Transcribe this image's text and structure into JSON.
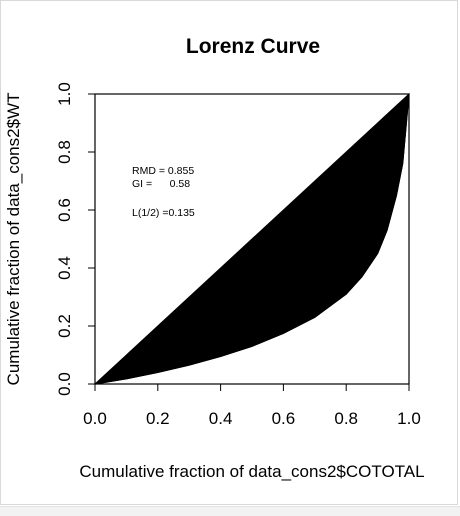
{
  "chart_data": {
    "type": "area",
    "title": "Lorenz Curve",
    "xlabel": "Cumulative fraction of data_cons2$COTOTAL",
    "ylabel": "Cumulative fraction of data_cons2$WT",
    "xlim": [
      0,
      1
    ],
    "ylim": [
      0,
      1
    ],
    "xticks": [
      "0.0",
      "0.2",
      "0.4",
      "0.6",
      "0.8",
      "1.0"
    ],
    "yticks": [
      "0.0",
      "0.2",
      "0.4",
      "0.6",
      "0.8",
      "1.0"
    ],
    "grid": false,
    "legend": "none",
    "fill_color": "#000000",
    "series": [
      {
        "x": [
          0,
          0.1,
          0.2,
          0.3,
          0.4,
          0.5,
          0.6,
          0.7,
          0.8,
          0.85,
          0.9,
          0.93,
          0.96,
          0.98,
          1.0
        ],
        "y": [
          0,
          0.018,
          0.04,
          0.065,
          0.095,
          0.13,
          0.175,
          0.23,
          0.31,
          0.37,
          0.45,
          0.53,
          0.65,
          0.76,
          1.0
        ]
      }
    ],
    "annotations": {
      "rmd": "RMD = 0.855",
      "gi": "GI =      0.58",
      "l_half": "L(1/2) =0.135"
    }
  }
}
